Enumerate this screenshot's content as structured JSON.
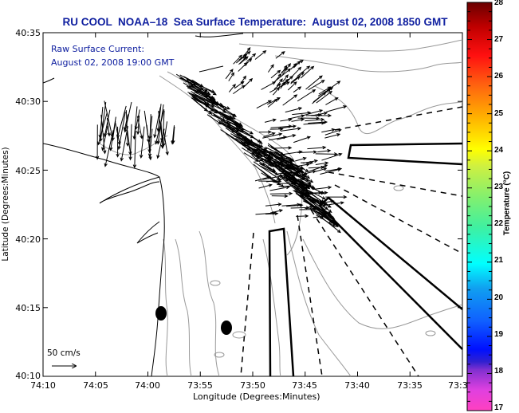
{
  "title": "RU COOL  NOAA–18  Sea Surface Temperature:  August 02, 2008 1850 GMT",
  "subtitle": {
    "line1": "Raw Surface Current:",
    "line2": "August 02, 2008 19:00 GMT"
  },
  "axes": {
    "xlabel": "Longitude (Degrees:Minutes)",
    "ylabel": "Latitude (Degrees:Minutes)",
    "x_ticks": [
      "74:10",
      "74:05",
      "74:00",
      "73:55",
      "73:50",
      "73:45",
      "73:40",
      "73:35",
      "73:3"
    ],
    "y_ticks": [
      "40:35",
      "40:30",
      "40:25",
      "40:20",
      "40:15",
      "40:10"
    ]
  },
  "scale": {
    "label": "50 cm/s"
  },
  "colorbar": {
    "label": "Temperature (°C)",
    "ticks": [
      "28",
      "27",
      "26",
      "25",
      "24",
      "23",
      "22",
      "21",
      "20",
      "19",
      "18",
      "17"
    ],
    "range": [
      17,
      28
    ]
  },
  "colors": {
    "title": "#1020a0",
    "coastline": "#000000",
    "bathymetry": "#999999",
    "vectors": "#000000"
  }
}
